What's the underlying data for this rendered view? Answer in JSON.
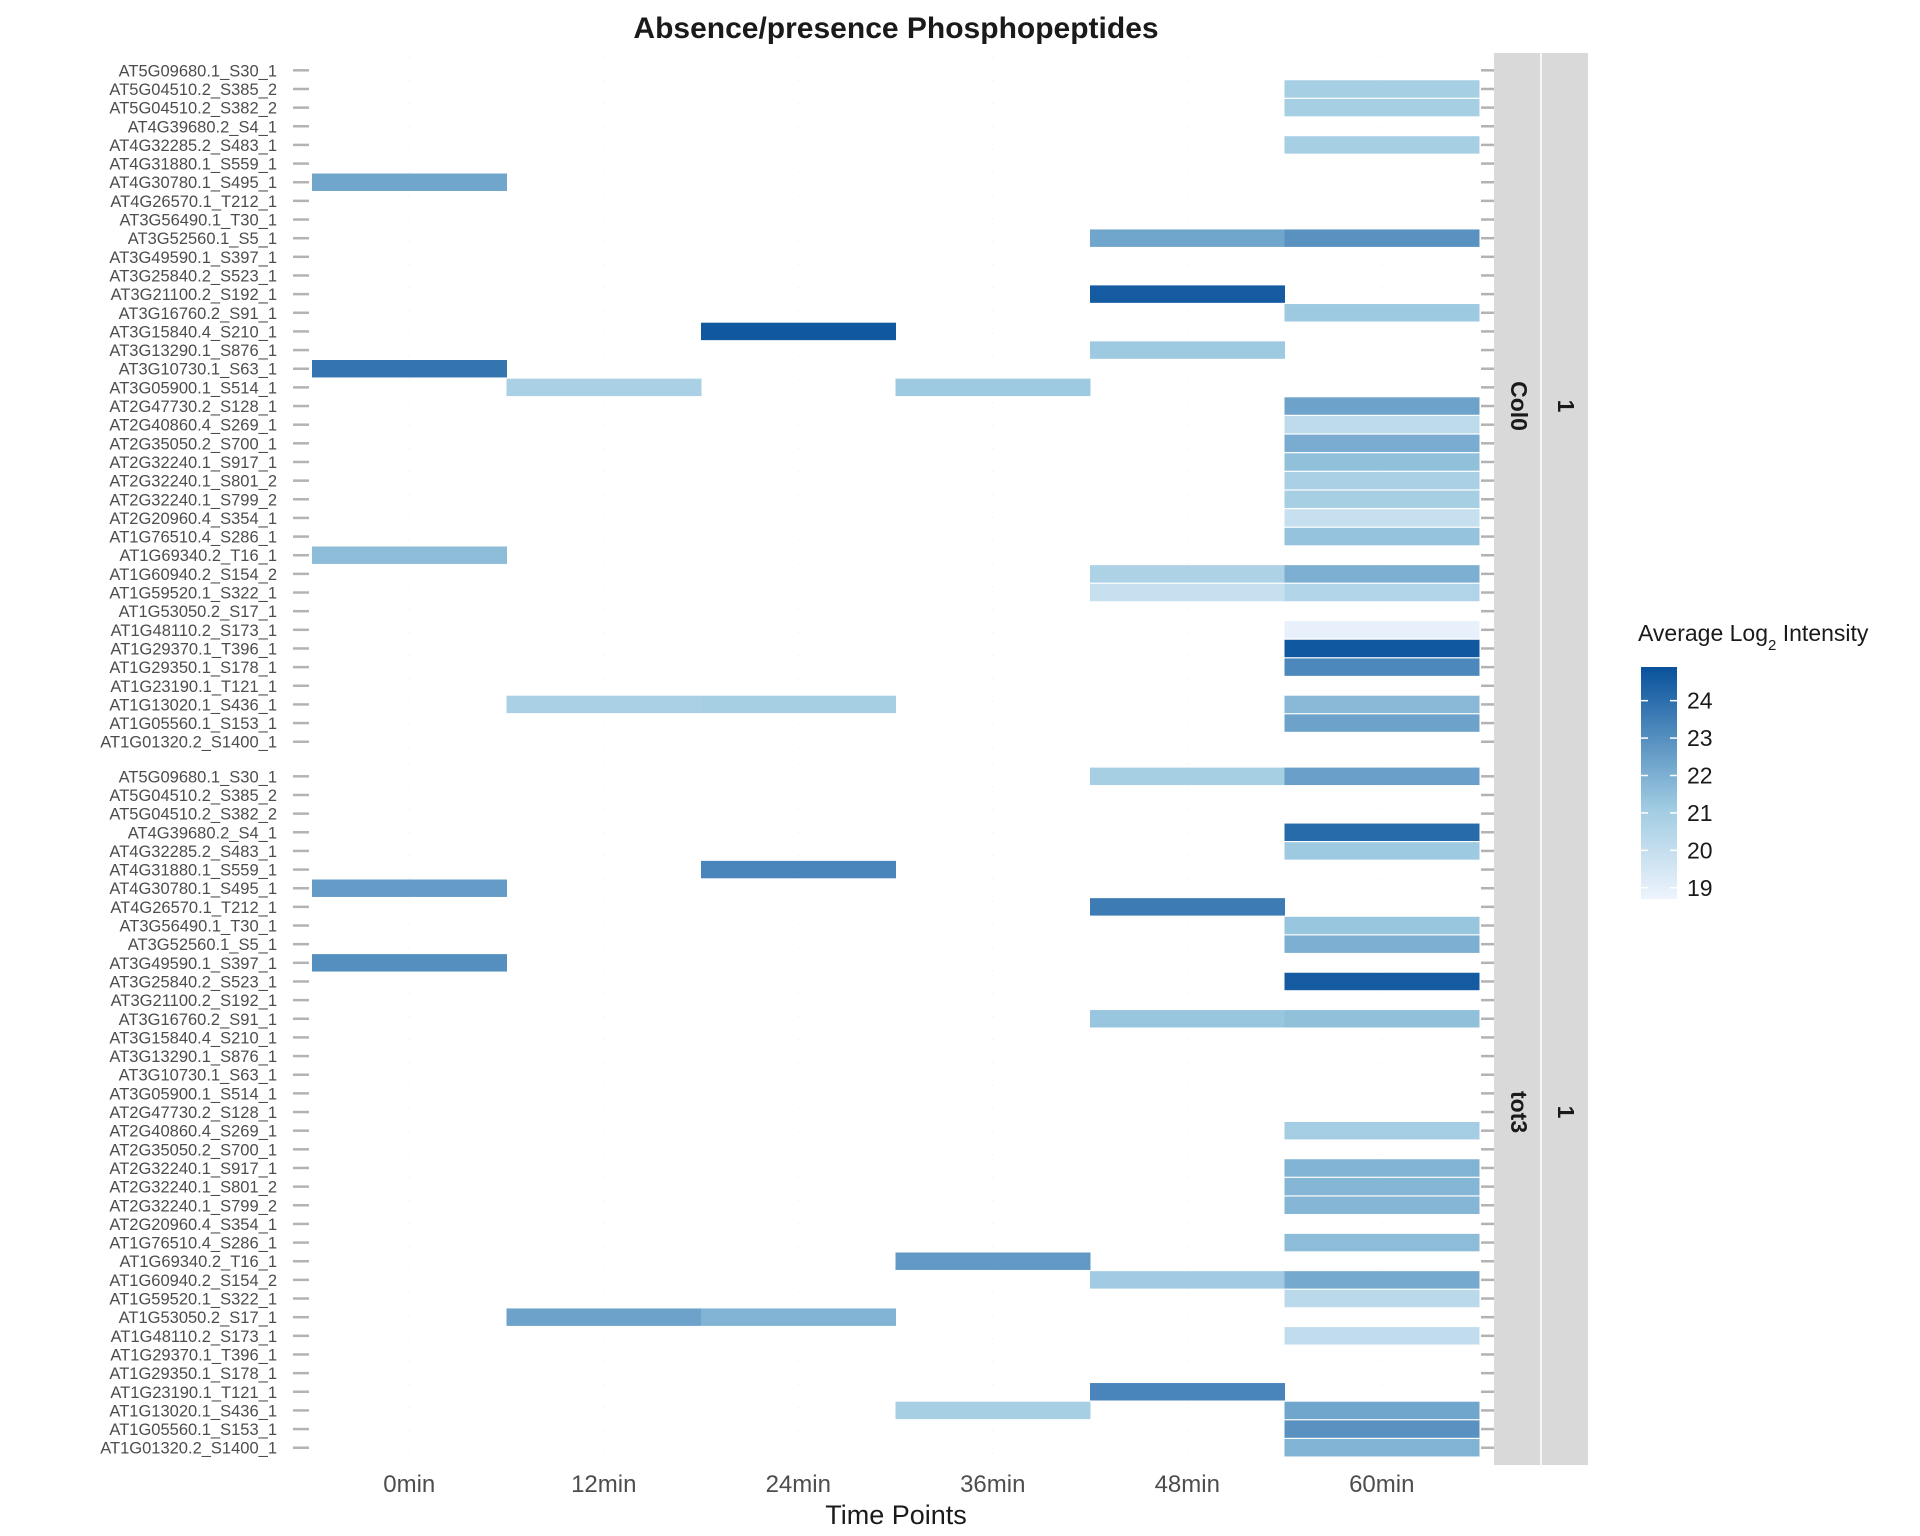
{
  "chart_data": {
    "type": "heatmap",
    "title": "Absence/presence Phosphopeptides",
    "xlabel": "Time Points",
    "x": [
      "0min",
      "12min",
      "24min",
      "36min",
      "48min",
      "60min"
    ],
    "rows": [
      "AT5G09680.1_S30_1",
      "AT5G04510.2_S385_2",
      "AT5G04510.2_S382_2",
      "AT4G39680.2_S4_1",
      "AT4G32285.2_S483_1",
      "AT4G31880.1_S559_1",
      "AT4G30780.1_S495_1",
      "AT4G26570.1_T212_1",
      "AT3G56490.1_T30_1",
      "AT3G52560.1_S5_1",
      "AT3G49590.1_S397_1",
      "AT3G25840.2_S523_1",
      "AT3G21100.2_S192_1",
      "AT3G16760.2_S91_1",
      "AT3G15840.4_S210_1",
      "AT3G13290.1_S876_1",
      "AT3G10730.1_S63_1",
      "AT3G05900.1_S514_1",
      "AT2G47730.2_S128_1",
      "AT2G40860.4_S269_1",
      "AT2G35050.2_S700_1",
      "AT2G32240.1_S917_1",
      "AT2G32240.1_S801_2",
      "AT2G32240.1_S799_2",
      "AT2G20960.4_S354_1",
      "AT1G76510.4_S286_1",
      "AT1G69340.2_T16_1",
      "AT1G60940.2_S154_2",
      "AT1G59520.1_S322_1",
      "AT1G53050.2_S17_1",
      "AT1G48110.2_S173_1",
      "AT1G29370.1_T396_1",
      "AT1G29350.1_S178_1",
      "AT1G23190.1_T121_1",
      "AT1G13020.1_S436_1",
      "AT1G05560.1_S153_1",
      "AT1G01320.2_S1400_1"
    ],
    "facets": [
      {
        "strip_outer": "1",
        "strip_inner": "Col0",
        "values": [
          [
            null,
            null,
            null,
            null,
            null,
            null
          ],
          [
            null,
            null,
            null,
            null,
            null,
            20.9
          ],
          [
            null,
            null,
            null,
            null,
            null,
            20.9
          ],
          [
            null,
            null,
            null,
            null,
            null,
            null
          ],
          [
            null,
            null,
            null,
            null,
            null,
            20.9
          ],
          [
            null,
            null,
            null,
            null,
            null,
            null
          ],
          [
            22.3,
            null,
            null,
            null,
            null,
            null
          ],
          [
            null,
            null,
            null,
            null,
            null,
            null
          ],
          [
            null,
            null,
            null,
            null,
            null,
            null
          ],
          [
            null,
            null,
            null,
            null,
            22.3,
            22.9
          ],
          [
            null,
            null,
            null,
            null,
            null,
            null
          ],
          [
            null,
            null,
            null,
            null,
            null,
            null
          ],
          [
            null,
            null,
            null,
            null,
            24.6,
            null
          ],
          [
            null,
            null,
            null,
            null,
            null,
            21.2
          ],
          [
            null,
            null,
            24.7,
            null,
            null,
            null
          ],
          [
            null,
            null,
            null,
            null,
            21.2,
            null
          ],
          [
            23.8,
            null,
            null,
            null,
            null,
            null
          ],
          [
            null,
            20.8,
            null,
            21.2,
            null,
            null
          ],
          [
            null,
            null,
            null,
            null,
            null,
            22.4
          ],
          [
            null,
            null,
            null,
            null,
            null,
            20.2
          ],
          [
            null,
            null,
            null,
            null,
            null,
            22.1
          ],
          [
            null,
            null,
            null,
            null,
            null,
            21.5
          ],
          [
            null,
            null,
            null,
            null,
            null,
            20.8
          ],
          [
            null,
            null,
            null,
            null,
            null,
            20.9
          ],
          [
            null,
            null,
            null,
            null,
            null,
            19.9
          ],
          [
            null,
            null,
            null,
            null,
            null,
            21.4
          ],
          [
            21.6,
            null,
            null,
            null,
            null,
            null
          ],
          [
            null,
            null,
            null,
            null,
            20.7,
            22.0
          ],
          [
            null,
            null,
            null,
            null,
            19.9,
            20.6
          ],
          [
            null,
            null,
            null,
            null,
            null,
            null
          ],
          [
            null,
            null,
            null,
            null,
            null,
            18.9
          ],
          [
            null,
            null,
            null,
            null,
            null,
            24.7
          ],
          [
            null,
            null,
            null,
            null,
            null,
            23.2
          ],
          [
            null,
            null,
            null,
            null,
            null,
            null
          ],
          [
            null,
            20.8,
            20.9,
            null,
            null,
            21.7
          ],
          [
            null,
            null,
            null,
            null,
            null,
            22.4
          ],
          [
            null,
            null,
            null,
            null,
            null,
            null
          ]
        ]
      },
      {
        "strip_outer": "1",
        "strip_inner": "tot3",
        "values": [
          [
            null,
            null,
            null,
            null,
            20.9,
            22.5
          ],
          [
            null,
            null,
            null,
            null,
            null,
            null
          ],
          [
            null,
            null,
            null,
            null,
            null,
            null
          ],
          [
            null,
            null,
            null,
            null,
            null,
            24.1
          ],
          [
            null,
            null,
            null,
            null,
            null,
            21.2
          ],
          [
            null,
            null,
            23.3,
            null,
            null,
            null
          ],
          [
            22.6,
            null,
            null,
            null,
            null,
            null
          ],
          [
            null,
            null,
            null,
            null,
            23.6,
            null
          ],
          [
            null,
            null,
            null,
            null,
            null,
            21.3
          ],
          [
            null,
            null,
            null,
            null,
            null,
            22.0
          ],
          [
            23.0,
            null,
            null,
            null,
            null,
            null
          ],
          [
            null,
            null,
            null,
            null,
            null,
            24.6
          ],
          [
            null,
            null,
            null,
            null,
            null,
            null
          ],
          [
            null,
            null,
            null,
            null,
            21.3,
            21.5
          ],
          [
            null,
            null,
            null,
            null,
            null,
            null
          ],
          [
            null,
            null,
            null,
            null,
            null,
            null
          ],
          [
            null,
            null,
            null,
            null,
            null,
            null
          ],
          [
            null,
            null,
            null,
            null,
            null,
            null
          ],
          [
            null,
            null,
            null,
            null,
            null,
            null
          ],
          [
            null,
            null,
            null,
            null,
            null,
            21.0
          ],
          [
            null,
            null,
            null,
            null,
            null,
            null
          ],
          [
            null,
            null,
            null,
            null,
            null,
            21.9
          ],
          [
            null,
            null,
            null,
            null,
            null,
            21.8
          ],
          [
            null,
            null,
            null,
            null,
            null,
            21.8
          ],
          [
            null,
            null,
            null,
            null,
            null,
            null
          ],
          [
            null,
            null,
            null,
            null,
            null,
            21.6
          ],
          [
            null,
            null,
            null,
            22.7,
            null,
            null
          ],
          [
            null,
            null,
            null,
            null,
            21.1,
            22.2
          ],
          [
            null,
            null,
            null,
            null,
            null,
            20.3
          ],
          [
            null,
            22.4,
            21.9,
            null,
            null,
            null
          ],
          [
            null,
            null,
            null,
            null,
            null,
            20.1
          ],
          [
            null,
            null,
            null,
            null,
            null,
            null
          ],
          [
            null,
            null,
            null,
            null,
            null,
            null
          ],
          [
            null,
            null,
            null,
            null,
            23.3,
            null
          ],
          [
            null,
            null,
            null,
            20.9,
            null,
            22.3
          ],
          [
            null,
            null,
            null,
            null,
            null,
            22.9
          ],
          [
            null,
            null,
            null,
            null,
            null,
            21.9
          ]
        ]
      }
    ],
    "legend": {
      "title": "Average Log",
      "title_subscript": "2",
      "title_suffix": " Intensity",
      "breaks": [
        24,
        23,
        22,
        21,
        20,
        19
      ],
      "range": [
        18.7,
        24.9
      ],
      "position": "right"
    },
    "colors": {
      "low": "#eef4fd",
      "mid": "#9ecae1",
      "high": "#08519c",
      "strip_fill": "#d9d9d9",
      "tick": "#b3b3b3",
      "grid": "#ebebeb"
    },
    "grid": false
  }
}
